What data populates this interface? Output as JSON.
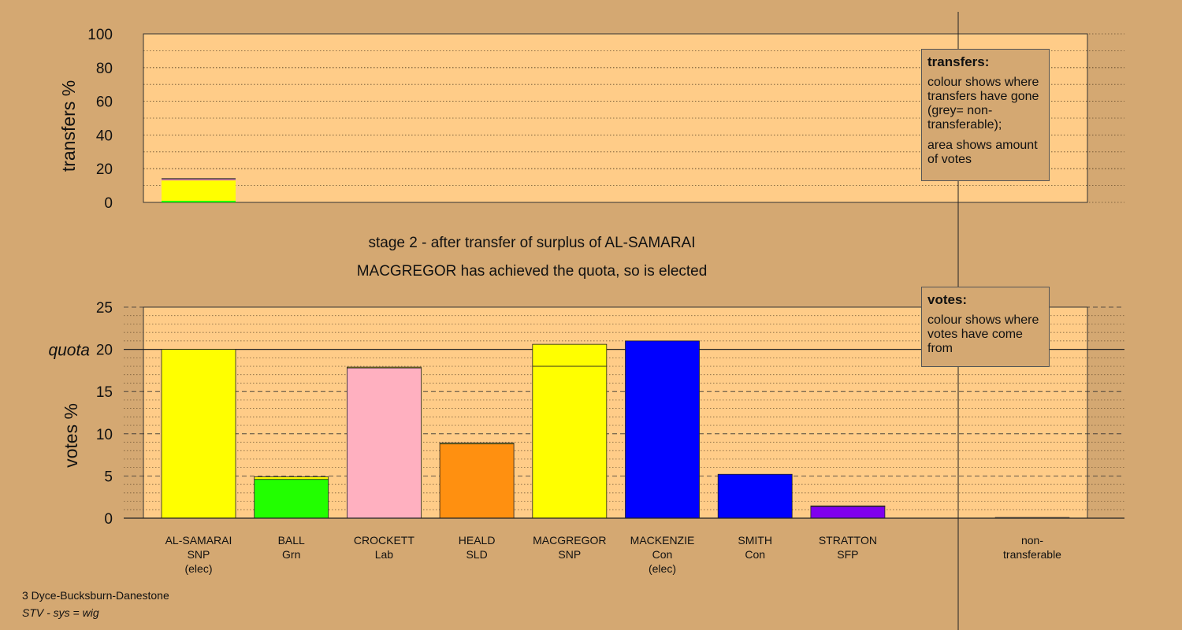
{
  "top_ylabel": "transfers %",
  "bottom_ylabel": "votes %",
  "quota_label": "quota",
  "heading_line1": "stage 2 - after transfer of surplus of AL-SAMARAI",
  "heading_line2": "MACGREGOR has achieved the quota, so is elected",
  "footer_line1": "3 Dyce-Bucksburn-Danestone",
  "footer_line2": "STV - sys = wig",
  "legend_transfers": {
    "title": "transfers:",
    "text1": "colour shows where transfers have gone (grey= non-transferable);",
    "text2": "area shows amount of votes"
  },
  "legend_votes": {
    "title": "votes:",
    "text1": "colour shows where votes have come from"
  },
  "chart_data": [
    {
      "type": "bar",
      "title": "",
      "ylabel": "transfers %",
      "ylim": [
        0,
        100
      ],
      "yticks": [
        0,
        20,
        40,
        60,
        80,
        100
      ],
      "bars": [
        {
          "category": "AL-SAMARAI",
          "segments": [
            {
              "to": "BALL",
              "value": 1.0,
              "color": "#22ff00"
            },
            {
              "to": "MACGREGOR",
              "value": 12.0,
              "color": "#ffff00"
            },
            {
              "to": "CROCKETT",
              "value": 0.3,
              "color": "#ffb0c0"
            },
            {
              "to": "HEALD",
              "value": 0.2,
              "color": "#ff9010"
            },
            {
              "to": "STRATTON",
              "value": 0.2,
              "color": "#8000ee"
            },
            {
              "to": "non-transferable",
              "value": 0.4,
              "color": "#bbbbbb"
            }
          ]
        }
      ]
    },
    {
      "type": "bar",
      "title": "",
      "ylabel": "votes %",
      "ylim": [
        0,
        25
      ],
      "yticks": [
        0,
        5,
        10,
        15,
        20,
        25
      ],
      "quota": 20,
      "categories": [
        {
          "name": "AL-SAMARAI",
          "party": "SNP",
          "note": "(elec)",
          "segments": [
            {
              "value": 20.0,
              "color": "#ffff00"
            }
          ]
        },
        {
          "name": "BALL",
          "party": "Grn",
          "note": "",
          "segments": [
            {
              "value": 4.6,
              "color": "#22ff00"
            },
            {
              "value": 0.3,
              "color": "#ffff00"
            }
          ]
        },
        {
          "name": "CROCKETT",
          "party": "Lab",
          "note": "",
          "segments": [
            {
              "value": 17.8,
              "color": "#ffb0c0"
            },
            {
              "value": 0.1,
              "color": "#ffff00"
            }
          ]
        },
        {
          "name": "HEALD",
          "party": "SLD",
          "note": "",
          "segments": [
            {
              "value": 8.8,
              "color": "#ff9010"
            },
            {
              "value": 0.1,
              "color": "#ffff00"
            }
          ]
        },
        {
          "name": "MACGREGOR",
          "party": "SNP",
          "note": "",
          "segments": [
            {
              "value": 18.0,
              "color": "#ffff00"
            },
            {
              "value": 2.6,
              "color": "#ffff00"
            }
          ]
        },
        {
          "name": "MACKENZIE",
          "party": "Con",
          "note": "(elec)",
          "segments": [
            {
              "value": 21.0,
              "color": "#0000ff"
            }
          ]
        },
        {
          "name": "SMITH",
          "party": "Con",
          "note": "",
          "segments": [
            {
              "value": 5.2,
              "color": "#0000ff"
            }
          ]
        },
        {
          "name": "STRATTON",
          "party": "SFP",
          "note": "",
          "segments": [
            {
              "value": 1.4,
              "color": "#8000ee"
            },
            {
              "value": 0.05,
              "color": "#ffff00"
            }
          ]
        }
      ],
      "non_transferable": {
        "label_line1": "non-",
        "label_line2": "transferable",
        "value": 0.1,
        "color": "#bbbbbb"
      }
    }
  ]
}
